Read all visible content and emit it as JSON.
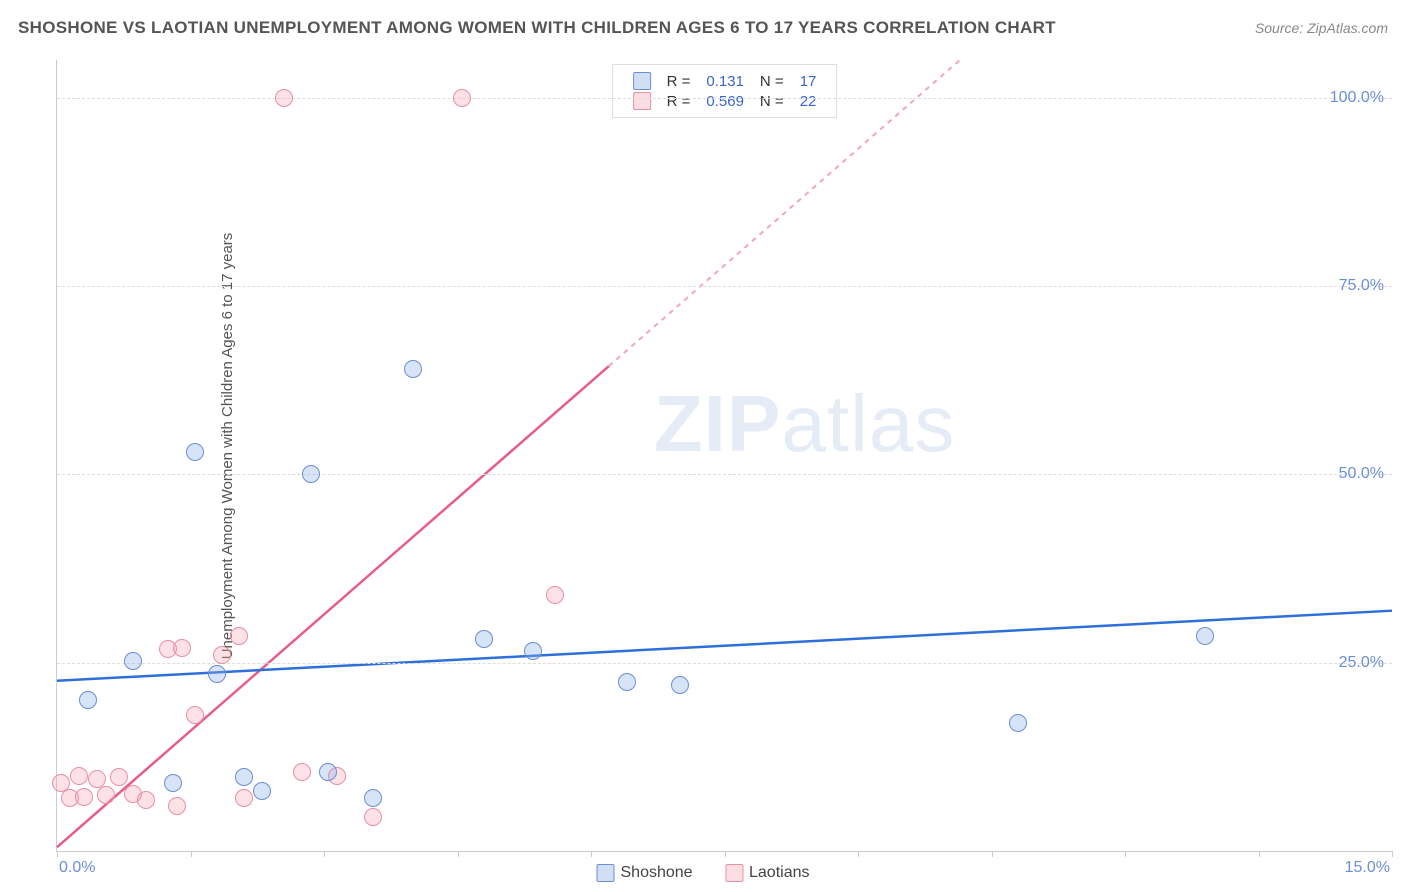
{
  "header": {
    "title": "SHOSHONE VS LAOTIAN UNEMPLOYMENT AMONG WOMEN WITH CHILDREN AGES 6 TO 17 YEARS CORRELATION CHART",
    "source": "Source: ZipAtlas.com"
  },
  "chart": {
    "type": "scatter",
    "ylabel": "Unemployment Among Women with Children Ages 6 to 17 years",
    "watermark_a": "ZIP",
    "watermark_b": "atlas",
    "xlim": [
      0,
      15
    ],
    "ylim": [
      0,
      105
    ],
    "x_ticks": [
      0,
      1.5,
      3.0,
      4.5,
      6.0,
      7.5,
      9.0,
      10.5,
      12.0,
      13.5,
      15.0
    ],
    "x_tick_labels": {
      "0": "0.0%",
      "15": "15.0%"
    },
    "y_gridlines": [
      25,
      50,
      75,
      100
    ],
    "y_tick_labels": {
      "25": "25.0%",
      "50": "50.0%",
      "75": "75.0%",
      "100": "100.0%"
    },
    "grid_color": "#dddddd",
    "axis_color": "#cccccc",
    "background_color": "#ffffff",
    "label_color": "#6b8fd4",
    "series": {
      "shoshone": {
        "label": "Shoshone",
        "color_fill": "rgba(140,175,230,0.35)",
        "color_stroke": "#6b8fd4",
        "marker_radius": 9,
        "R": "0.131",
        "N": "17",
        "points": [
          [
            0.35,
            20.0
          ],
          [
            0.85,
            25.2
          ],
          [
            1.3,
            9.0
          ],
          [
            1.55,
            53.0
          ],
          [
            1.8,
            23.5
          ],
          [
            2.1,
            9.8
          ],
          [
            2.3,
            8.0
          ],
          [
            2.85,
            50.0
          ],
          [
            3.05,
            10.5
          ],
          [
            3.55,
            7.0
          ],
          [
            4.0,
            64.0
          ],
          [
            4.8,
            28.2
          ],
          [
            5.35,
            26.5
          ],
          [
            6.4,
            22.4
          ],
          [
            7.0,
            22.0
          ],
          [
            10.8,
            17.0
          ],
          [
            12.9,
            28.5
          ]
        ],
        "trend": {
          "slope": 0.62,
          "intercept": 22.6,
          "dash_after_x": 15
        }
      },
      "laotians": {
        "label": "Laotians",
        "color_fill": "rgba(245,170,185,0.35)",
        "color_stroke": "#e890a5",
        "marker_radius": 9,
        "R": "0.569",
        "N": "22",
        "points": [
          [
            0.05,
            9.0
          ],
          [
            0.15,
            7.0
          ],
          [
            0.25,
            10.0
          ],
          [
            0.3,
            7.2
          ],
          [
            0.45,
            9.5
          ],
          [
            0.55,
            7.4
          ],
          [
            0.7,
            9.8
          ],
          [
            0.85,
            7.6
          ],
          [
            1.0,
            6.8
          ],
          [
            1.25,
            26.8
          ],
          [
            1.4,
            27.0
          ],
          [
            1.35,
            6.0
          ],
          [
            1.55,
            18.0
          ],
          [
            1.85,
            26.0
          ],
          [
            2.05,
            28.5
          ],
          [
            2.1,
            7.0
          ],
          [
            2.55,
            100.0
          ],
          [
            2.75,
            10.5
          ],
          [
            3.15,
            10.0
          ],
          [
            3.55,
            4.5
          ],
          [
            4.55,
            100.0
          ],
          [
            5.6,
            34.0
          ]
        ],
        "trend": {
          "slope": 10.3,
          "intercept": 0.5,
          "dash_after_x": 6.2
        }
      }
    },
    "legend_top": {
      "r_label": "R =",
      "n_label": "N ="
    },
    "legend_bottom": {
      "items": [
        "shoshone",
        "laotians"
      ]
    }
  }
}
